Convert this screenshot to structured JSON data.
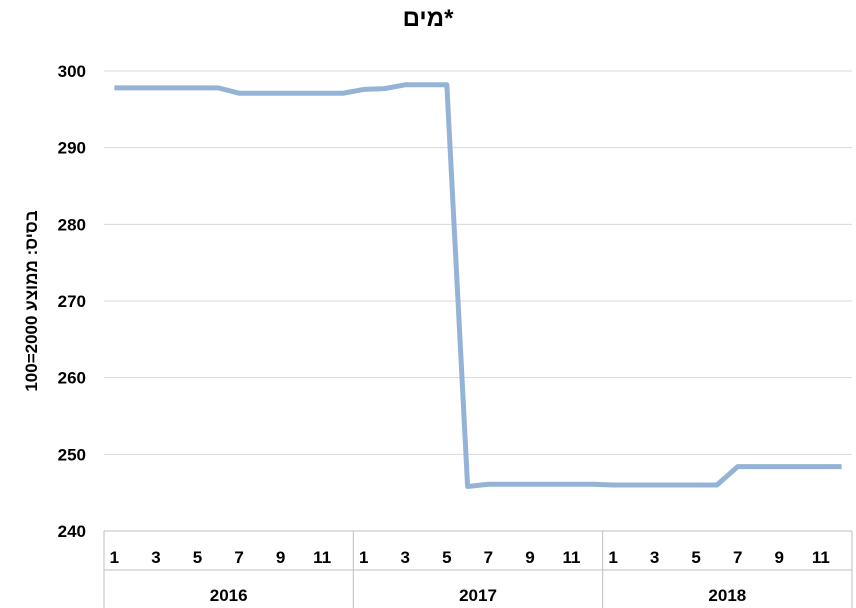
{
  "chart_data": {
    "type": "line",
    "title": "מים*",
    "ylabel": "בסיס: ממוצע 2000=100",
    "xlabel": "",
    "ylim": [
      240,
      300
    ],
    "yticks": [
      240,
      250,
      260,
      270,
      280,
      290,
      300
    ],
    "grid": true,
    "years": [
      "2016",
      "2017",
      "2018"
    ],
    "month_tick_labels": [
      "1",
      "3",
      "5",
      "7",
      "9",
      "11"
    ],
    "series": [
      {
        "color": "#95b3d7",
        "values": [
          297.8,
          297.8,
          297.8,
          297.8,
          297.8,
          297.8,
          297.1,
          297.1,
          297.1,
          297.1,
          297.1,
          297.1,
          297.6,
          297.7,
          298.2,
          298.2,
          298.2,
          245.8,
          246.1,
          246.1,
          246.1,
          246.1,
          246.1,
          246.1,
          246.0,
          246.0,
          246.0,
          246.0,
          246.0,
          246.0,
          248.4,
          248.4,
          248.4,
          248.4,
          248.4,
          248.4
        ]
      }
    ]
  }
}
